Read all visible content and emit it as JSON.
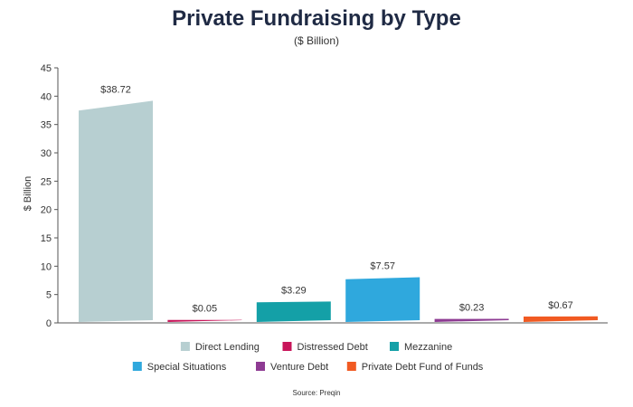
{
  "chart_data": {
    "type": "bar",
    "title": "Private Fundraising by Type",
    "subtitle": "($ Billion)",
    "ylabel": "$ Billion",
    "xlabel": "",
    "ylim": [
      0,
      45
    ],
    "yticks": [
      0,
      5,
      10,
      15,
      20,
      25,
      30,
      35,
      40,
      45
    ],
    "categories": [
      "Direct Lending",
      "Distressed Debt",
      "Mezzanine",
      "Special Situations",
      "Venture Debt",
      "Private Debt Fund of Funds"
    ],
    "values": [
      38.72,
      0.05,
      3.29,
      7.57,
      0.23,
      0.67
    ],
    "data_labels": [
      "$38.72",
      "$0.05",
      "$3.29",
      "$7.57",
      "$0.23",
      "$0.67"
    ],
    "colors": [
      "#b7cfd1",
      "#c8155a",
      "#14a0a7",
      "#2fa8dd",
      "#8e3b93",
      "#f15a22"
    ],
    "legend_position": "bottom",
    "grid": false,
    "source": "Source: Preqin"
  }
}
